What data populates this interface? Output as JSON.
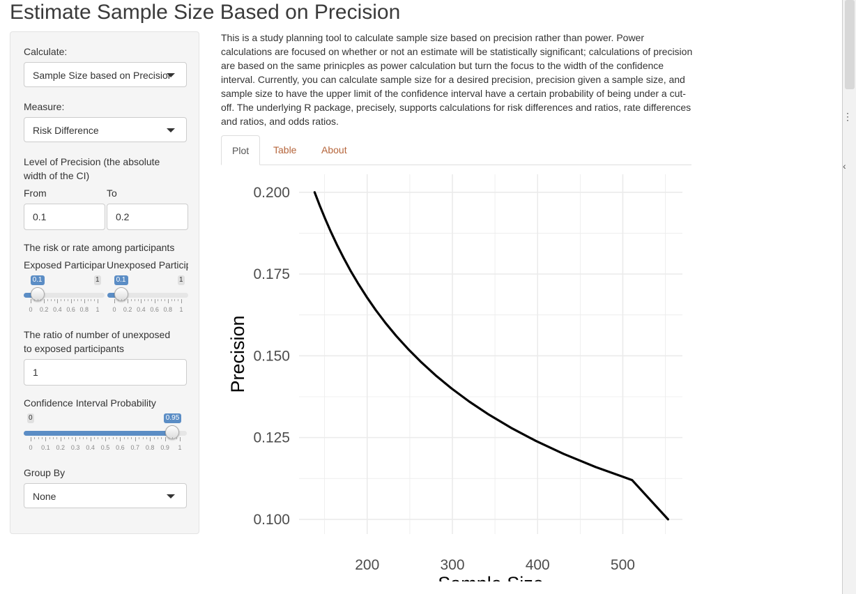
{
  "page": {
    "title": "Estimate Sample Size Based on Precision"
  },
  "sidebar": {
    "calculate_label": "Calculate:",
    "calculate_value": "Sample Size based on Precision",
    "measure_label": "Measure:",
    "measure_value": "Risk Difference",
    "precision_label_line1": "Level of Precision (the absolute",
    "precision_label_line2": "width of the CI)",
    "from_label": "From",
    "to_label": "To",
    "from_value": "0.1",
    "to_value": "0.2",
    "risk_label": "The risk or rate among participants",
    "exposed_label": "Exposed Participants",
    "unexposed_label": "Unexposed Participants",
    "exposed_slider": {
      "value": 0.1,
      "badge": "0.1",
      "max_badge": "1",
      "ticks": [
        "0",
        "0.2",
        "0.4",
        "0.6",
        "0.8",
        "1"
      ]
    },
    "unexposed_slider": {
      "value": 0.1,
      "badge": "0.1",
      "max_badge": "1",
      "ticks": [
        "0",
        "0.2",
        "0.4",
        "0.6",
        "0.8",
        "1"
      ]
    },
    "ratio_label_line1": "The ratio of number of unexposed",
    "ratio_label_line2": "to exposed participants",
    "ratio_value": "1",
    "ci_label": "Confidence Interval Probability",
    "ci_slider": {
      "value": 0.95,
      "badge": "0.95",
      "min_badge": "0",
      "ticks": [
        "0",
        "0.1",
        "0.2",
        "0.3",
        "0.4",
        "0.5",
        "0.6",
        "0.7",
        "0.8",
        "0.9",
        "1"
      ]
    },
    "group_label": "Group By",
    "group_value": "None"
  },
  "main": {
    "description": "This is a study planning tool to calculate sample size based on precision rather than power. Power calculations are focused on whether or not an estimate will be statistically significant; calculations of precision are based on the same prinicples as power calculation but turn the focus to the width of the confidence interval. Currently, you can calculate sample size for a desired precision, precision given a sample size, and sample size to have the upper limit of the confidence interval have a certain probability of being under a cut-off. The underlying R package, precisely, supports calculations for risk differences and ratios, rate differences and ratios, and odds ratios.",
    "tabs": [
      {
        "label": "Plot",
        "active": true
      },
      {
        "label": "Table",
        "active": false
      },
      {
        "label": "About",
        "active": false
      }
    ]
  },
  "colors": {
    "accent": "#5b8dc5",
    "link": "#b5653b",
    "line": "#000000",
    "grid": "#ebebeb"
  },
  "chart_data": {
    "type": "line",
    "xlabel": "Sample Size",
    "ylabel": "Precision",
    "x_ticks": [
      200,
      300,
      400,
      500
    ],
    "y_ticks": [
      "0.100",
      "0.125",
      "0.150",
      "0.175",
      "0.200"
    ],
    "xlim": [
      120,
      570
    ],
    "ylim": [
      0.0955,
      0.2055
    ],
    "grid": true,
    "series": [
      {
        "x": [
          138.3,
          144.2,
          150.5,
          157.2,
          164.4,
          172.2,
          180.5,
          189.6,
          199.4,
          210.0,
          221.6,
          234.3,
          248.3,
          263.6,
          280.4,
          299.1,
          319.8,
          342.9,
          368.7,
          397.8,
          430.6,
          468.1,
          510.9,
          553.1
        ],
        "y": [
          0.2,
          0.196,
          0.192,
          0.188,
          0.184,
          0.18,
          0.176,
          0.172,
          0.168,
          0.164,
          0.16,
          0.156,
          0.152,
          0.148,
          0.144,
          0.14,
          0.136,
          0.132,
          0.128,
          0.124,
          0.12,
          0.116,
          0.112,
          0.1
        ]
      }
    ]
  }
}
